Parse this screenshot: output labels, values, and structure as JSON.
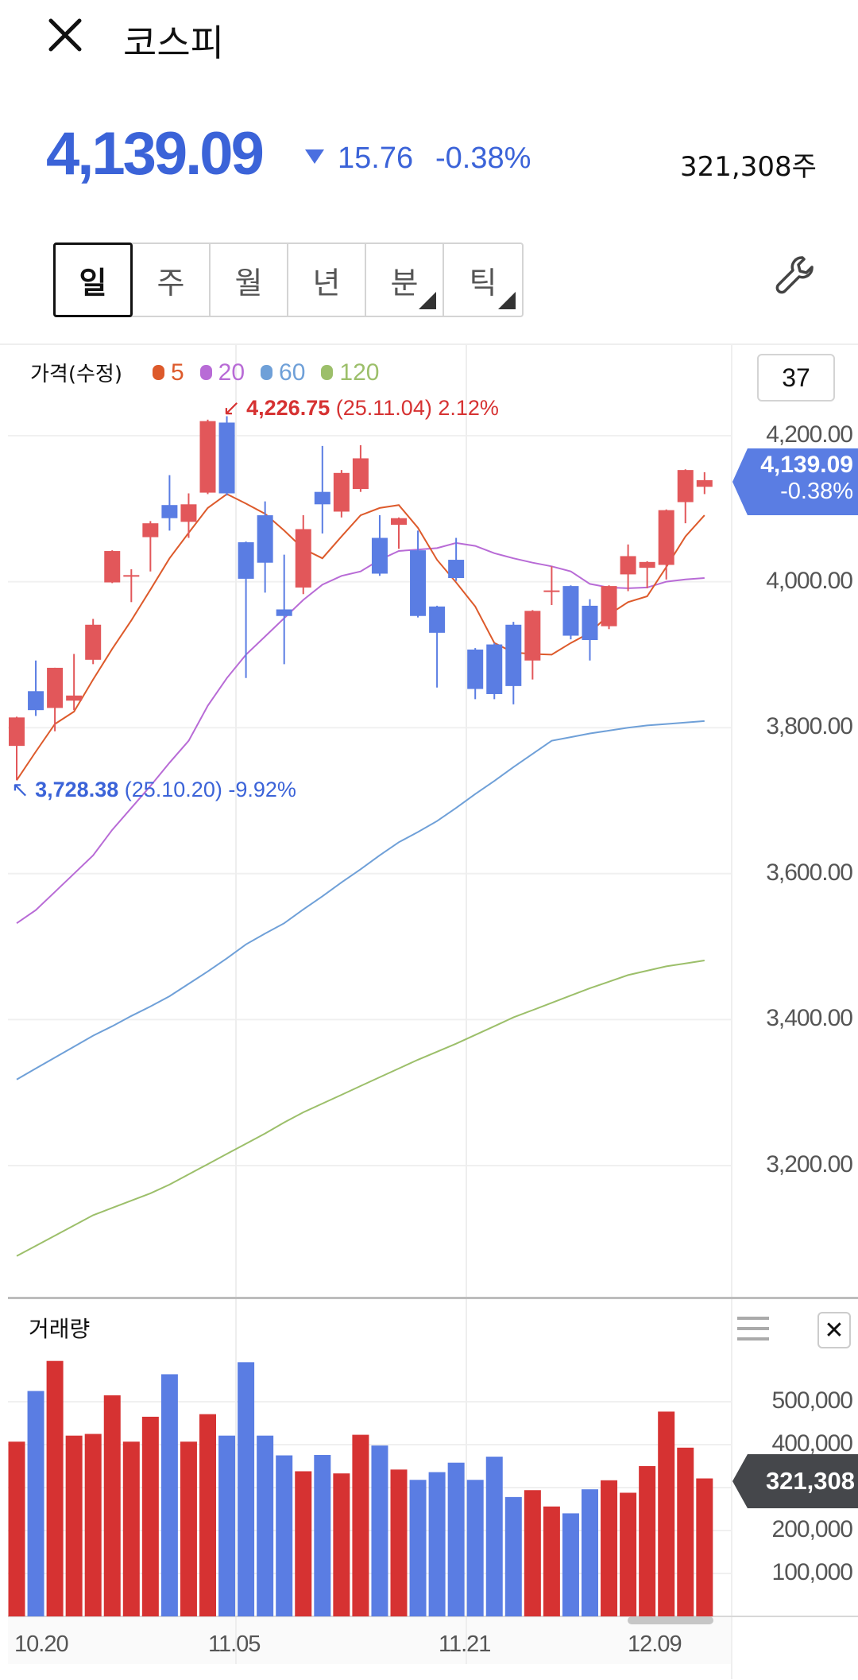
{
  "header": {
    "title": "코스피",
    "close_icon": "close-icon"
  },
  "quote": {
    "price": "4,139.09",
    "direction": "down",
    "change": "15.76",
    "rate": "-0.38%",
    "volume": "321,308주"
  },
  "tabs": [
    {
      "label": "일",
      "selected": true,
      "has_menu": false
    },
    {
      "label": "주",
      "selected": false,
      "has_menu": false
    },
    {
      "label": "월",
      "selected": false,
      "has_menu": false
    },
    {
      "label": "년",
      "selected": false,
      "has_menu": false
    },
    {
      "label": "분",
      "selected": false,
      "has_menu": true
    },
    {
      "label": "틱",
      "selected": false,
      "has_menu": true
    }
  ],
  "settings_icon": "wrench-icon",
  "legend": {
    "label": "가격(수정)",
    "items": [
      {
        "label": "5",
        "color": "#dd5a2b"
      },
      {
        "label": "20",
        "color": "#b86bd6"
      },
      {
        "label": "60",
        "color": "#6fa0d8"
      },
      {
        "label": "120",
        "color": "#9cbf6a"
      }
    ]
  },
  "count": "37",
  "price_axis": [
    "4,200.00",
    "4,000.00",
    "3,800.00",
    "3,600.00",
    "3,400.00",
    "3,200.00"
  ],
  "current_tag": {
    "price": "4,139.09",
    "rate": "-0.38%"
  },
  "high_marker": {
    "value": "4,226.75",
    "date": "(25.11.04)",
    "rate": "2.12%"
  },
  "low_marker": {
    "value": "3,728.38",
    "date": "(25.10.20)",
    "rate": "-9.92%"
  },
  "volume_panel": {
    "title": "거래량",
    "axis": [
      "500,000",
      "400,000",
      "200,000",
      "100,000"
    ],
    "current": "321,308"
  },
  "x_axis": [
    "10.20",
    "11.05",
    "11.21",
    "12.09"
  ],
  "colors": {
    "up": "#e2575a",
    "down": "#5a7de3",
    "vol_up": "#d63232",
    "vol_down": "#5a7de3"
  },
  "chart_data": {
    "type": "candlestick",
    "price_range": [
      3050,
      4260
    ],
    "candles": [
      [
        3775,
        3814,
        3815,
        3728
      ],
      [
        3850,
        3824,
        3892,
        3816
      ],
      [
        3827,
        3882,
        3882,
        3795
      ],
      [
        3837,
        3844,
        3901,
        3824
      ],
      [
        3893,
        3941,
        3949,
        3887
      ],
      [
        3999,
        4042,
        4043,
        3998
      ],
      [
        4009,
        4009,
        4017,
        3972
      ],
      [
        4061,
        4080,
        4083,
        4014
      ],
      [
        4105,
        4087,
        4146,
        4070
      ],
      [
        4082,
        4106,
        4121,
        4060
      ],
      [
        4122,
        4220,
        4222,
        4120
      ],
      [
        4218,
        4121,
        4226.75,
        4118
      ],
      [
        4054,
        4004,
        4055,
        3868
      ],
      [
        4091,
        4026,
        4110,
        3985
      ],
      [
        3962,
        3953,
        4037,
        3887
      ],
      [
        3992,
        4072,
        4091,
        3983
      ],
      [
        4123,
        4106,
        4186,
        4066
      ],
      [
        4096,
        4149,
        4153,
        4088
      ],
      [
        4127,
        4169,
        4187,
        4123
      ],
      [
        4060,
        4011,
        4091,
        4008
      ],
      [
        4078,
        4087,
        4088,
        4045
      ],
      [
        4043,
        3953,
        4070,
        3951
      ],
      [
        3966,
        3930,
        3967,
        3855
      ],
      [
        4030,
        4005,
        4060,
        4001
      ],
      [
        3907,
        3853,
        3909,
        3839
      ],
      [
        3914,
        3846,
        3916,
        3839
      ],
      [
        3941,
        3857,
        3945,
        3832
      ],
      [
        3892,
        3960,
        3961,
        3866
      ],
      [
        3988,
        3988,
        4021,
        3968
      ],
      [
        3994,
        3926,
        3995,
        3921
      ],
      [
        3967,
        3920,
        3976,
        3892
      ],
      [
        3939,
        3994,
        3995,
        3935
      ],
      [
        4010,
        4035,
        4051,
        3987
      ],
      [
        4019,
        4027,
        4028,
        3991
      ],
      [
        4023,
        4098,
        4099,
        4003
      ],
      [
        4109,
        4153,
        4154,
        4080
      ],
      [
        4130,
        4139.09,
        4150,
        4120
      ]
    ],
    "ma5": [
      3728,
      3767,
      3805,
      3822,
      3866,
      3908,
      3947,
      3989,
      4032,
      4067,
      4101,
      4120,
      4107,
      4093,
      4070,
      4045,
      4032,
      4062,
      4091,
      4101,
      4105,
      4074,
      4030,
      3999,
      3966,
      3916,
      3903,
      3901,
      3900,
      3916,
      3930,
      3955,
      3972,
      3980,
      4020,
      4062,
      4091
    ],
    "ma20": [
      3532,
      3550,
      3575,
      3600,
      3625,
      3660,
      3690,
      3720,
      3752,
      3782,
      3830,
      3868,
      3900,
      3925,
      3950,
      3975,
      3996,
      4008,
      4014,
      4030,
      4042,
      4044,
      4046,
      4053,
      4049,
      4039,
      4032,
      4026,
      4021,
      4014,
      3997,
      3992,
      3991,
      3992,
      4000,
      4003,
      4005
    ],
    "ma60": [
      3318,
      3333,
      3348,
      3363,
      3378,
      3391,
      3405,
      3418,
      3432,
      3449,
      3466,
      3484,
      3503,
      3518,
      3532,
      3551,
      3569,
      3588,
      3606,
      3625,
      3643,
      3657,
      3672,
      3690,
      3709,
      3727,
      3746,
      3764,
      3782,
      3787,
      3792,
      3796,
      3800,
      3803,
      3805,
      3807,
      3809
    ],
    "ma120": [
      3076,
      3090,
      3104,
      3118,
      3132,
      3142,
      3152,
      3162,
      3174,
      3188,
      3202,
      3216,
      3230,
      3244,
      3259,
      3273,
      3285,
      3297,
      3309,
      3321,
      3333,
      3345,
      3356,
      3367,
      3379,
      3391,
      3403,
      3413,
      3423,
      3433,
      3443,
      3452,
      3461,
      3467,
      3473,
      3477,
      3481
    ],
    "volume_range": [
      0,
      600000
    ],
    "volume": [
      407000,
      525000,
      595000,
      421000,
      425000,
      515000,
      407000,
      465000,
      564000,
      407000,
      471000,
      421000,
      592000,
      421000,
      375000,
      338000,
      376000,
      333000,
      423000,
      398000,
      342000,
      318000,
      336000,
      358000,
      318000,
      372000,
      278000,
      294000,
      256000,
      240000,
      296000,
      317000,
      288000,
      350000,
      477000,
      393000,
      321308
    ]
  }
}
